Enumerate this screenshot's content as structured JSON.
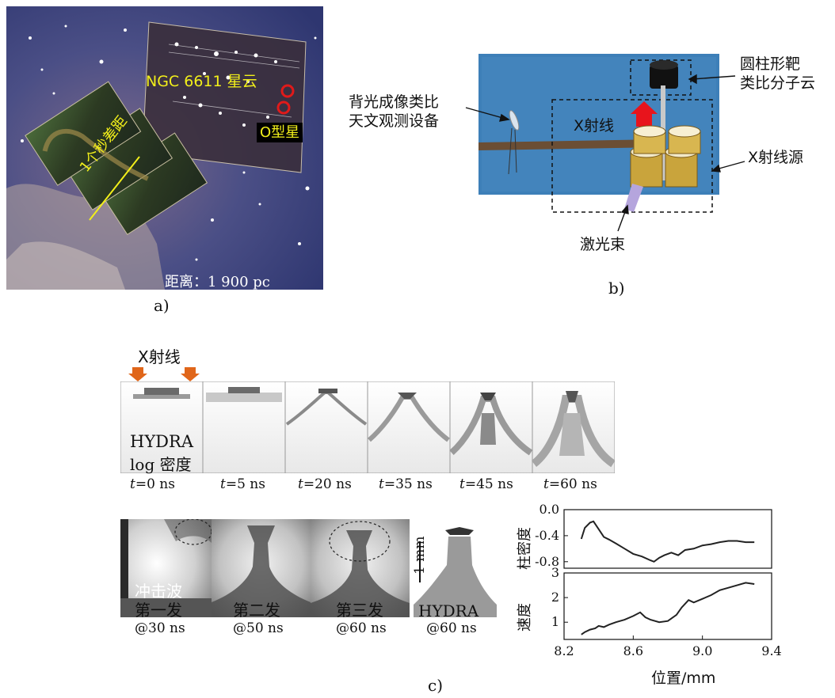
{
  "panel_a": {
    "caption": "a)",
    "nebula_label": "NGC 6611 星云",
    "star_label": "O型星",
    "scale_label": "1个秒差距",
    "distance_label": "距离：1 900 pc",
    "colors": {
      "label": "#f2ef1a",
      "marker": "#e01a1a"
    }
  },
  "panel_b": {
    "caption": "b)",
    "label_imaging": [
      "背光成像类比",
      "天文观测设备"
    ],
    "label_target": [
      "圆柱形靶",
      "类比分子云"
    ],
    "label_xray": "X射线",
    "label_xray_source": "X射线源",
    "label_laser": "激光束",
    "colors": {
      "background": "#3d7fb8",
      "arrow": "#e8141c",
      "laser": "#b5a5dd",
      "can": "#c9a43c"
    }
  },
  "panel_c": {
    "caption": "c)",
    "xray_label": "X射线",
    "sim_label": [
      "HYDRA",
      "log 密度"
    ],
    "sim_times": [
      {
        "var": "t",
        "rest": "=0  ns"
      },
      {
        "var": "t",
        "rest": "=5  ns"
      },
      {
        "var": "t",
        "rest": "=20  ns"
      },
      {
        "var": "t",
        "rest": "=35  ns"
      },
      {
        "var": "t",
        "rest": "=45  ns"
      },
      {
        "var": "t",
        "rest": "=60  ns"
      }
    ],
    "shot_labels": [
      {
        "top": "冲击波",
        "name": "第一发",
        "time": "@30  ns"
      },
      {
        "top": "",
        "name": "第二发",
        "time": "@50  ns"
      },
      {
        "top": "",
        "name": "第三发",
        "time": "@60  ns"
      }
    ],
    "hydra_label": "HYDRA",
    "hydra_time": "@60 ns",
    "scale_bar": "1 mm",
    "arrow_color": "#e0661a"
  },
  "chart_data": {
    "type": "line",
    "xlabel": "位置/mm",
    "xticks": [
      "8.2",
      "8.6",
      "9.0",
      "9.4"
    ],
    "xlim": [
      8.2,
      9.4
    ],
    "panels": [
      {
        "ylabel": "柱密度",
        "ylim": [
          -0.9,
          0.0
        ],
        "yticks": [
          "0.0",
          "-0.4",
          "-0.8"
        ],
        "x": [
          8.3,
          8.32,
          8.35,
          8.37,
          8.4,
          8.43,
          8.46,
          8.5,
          8.55,
          8.6,
          8.65,
          8.7,
          8.72,
          8.75,
          8.78,
          8.82,
          8.86,
          8.9,
          8.95,
          9.0,
          9.05,
          9.1,
          9.15,
          9.2,
          9.25,
          9.3
        ],
        "y": [
          -0.45,
          -0.28,
          -0.2,
          -0.18,
          -0.3,
          -0.42,
          -0.46,
          -0.52,
          -0.6,
          -0.68,
          -0.72,
          -0.78,
          -0.8,
          -0.74,
          -0.7,
          -0.66,
          -0.7,
          -0.62,
          -0.6,
          -0.55,
          -0.53,
          -0.5,
          -0.48,
          -0.48,
          -0.5,
          -0.5
        ]
      },
      {
        "ylabel": "速度",
        "ylim": [
          0.3,
          3.0
        ],
        "yticks": [
          "3",
          "2",
          "1"
        ],
        "x": [
          8.3,
          8.32,
          8.35,
          8.38,
          8.4,
          8.43,
          8.46,
          8.5,
          8.55,
          8.6,
          8.64,
          8.67,
          8.7,
          8.75,
          8.8,
          8.85,
          8.88,
          8.92,
          8.95,
          9.0,
          9.05,
          9.1,
          9.15,
          9.2,
          9.25,
          9.3
        ],
        "y": [
          0.5,
          0.6,
          0.7,
          0.75,
          0.85,
          0.8,
          0.9,
          1.0,
          1.1,
          1.25,
          1.4,
          1.2,
          1.1,
          1.0,
          1.05,
          1.3,
          1.6,
          1.9,
          1.8,
          1.95,
          2.1,
          2.3,
          2.4,
          2.5,
          2.6,
          2.55
        ]
      }
    ]
  }
}
